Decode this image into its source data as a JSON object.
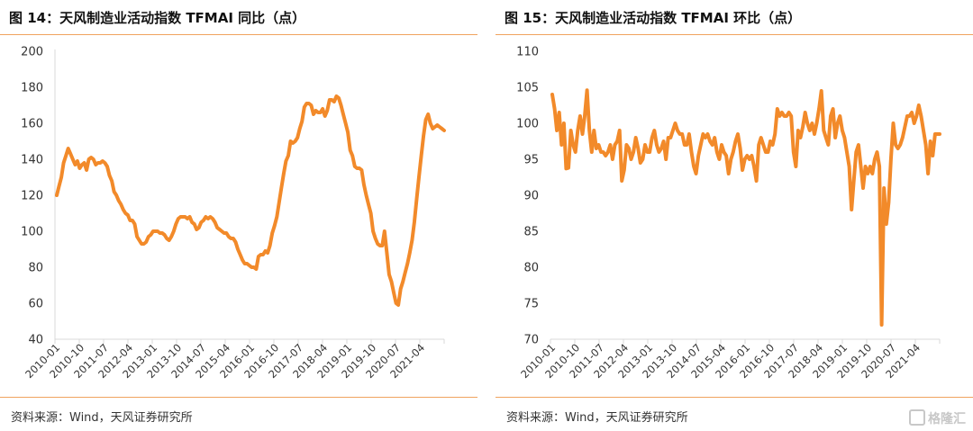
{
  "colors": {
    "series": "#f28a2a",
    "rule": "#f0a35e"
  },
  "watermark": {
    "text": "格隆汇"
  },
  "chart_data": [
    {
      "type": "line",
      "title": "图 14：天风制造业活动指数 TFMAI 同比（点）",
      "source": "资料来源：Wind，天风证券研究所",
      "ylim": [
        40,
        200
      ],
      "yticks": [
        40,
        60,
        80,
        100,
        120,
        140,
        160,
        180,
        200
      ],
      "xticks": [
        "2010-01",
        "2010-10",
        "2011-07",
        "2012-04",
        "2013-01",
        "2013-10",
        "2014-07",
        "2015-04",
        "2016-01",
        "2016-10",
        "2017-07",
        "2018-04",
        "2019-01",
        "2019-10",
        "2020-07",
        "2021-04"
      ],
      "legend": "none",
      "grid": false,
      "series": [
        {
          "values": [
            120,
            125,
            130,
            138,
            142,
            146,
            143,
            140,
            137,
            139,
            135,
            137,
            138,
            134,
            140,
            141,
            140,
            137,
            138,
            138,
            139,
            138,
            136,
            131,
            128,
            122,
            120,
            117,
            115,
            112,
            110,
            109,
            106,
            106,
            104,
            97,
            95,
            93,
            93,
            94,
            97,
            98,
            100,
            100,
            100,
            99,
            99,
            98,
            96,
            95,
            97,
            100,
            104,
            107,
            108,
            108,
            108,
            107,
            108,
            105,
            104,
            101,
            102,
            105,
            106,
            108,
            107,
            108,
            107,
            105,
            102,
            101,
            100,
            99,
            99,
            97,
            96,
            96,
            94,
            90,
            87,
            84,
            82,
            82,
            81,
            80,
            80,
            79,
            86,
            87,
            87,
            89,
            88,
            92,
            99,
            103,
            108,
            116,
            124,
            132,
            139,
            142,
            150,
            149,
            150,
            152,
            157,
            161,
            169,
            171,
            171,
            170,
            165,
            167,
            166,
            166,
            168,
            164,
            167,
            173,
            173,
            172,
            175,
            174,
            170,
            165,
            160,
            155,
            145,
            142,
            136,
            135,
            135,
            134,
            126,
            120,
            115,
            110,
            100,
            96,
            93,
            92,
            92,
            100,
            88,
            76,
            72,
            66,
            60,
            59,
            68,
            72,
            77,
            82,
            88,
            95,
            105,
            118,
            130,
            142,
            153,
            162,
            165,
            160,
            157,
            158,
            159,
            158,
            157,
            156
          ]
        }
      ]
    },
    {
      "type": "line",
      "title": "图 15：天风制造业活动指数 TFMAI 环比（点）",
      "source": "资料来源：Wind，天风证券研究所",
      "ylim": [
        70,
        110
      ],
      "yticks": [
        70,
        75,
        80,
        85,
        90,
        95,
        100,
        105,
        110
      ],
      "xticks": [
        "2010-01",
        "2010-10",
        "2011-07",
        "2012-04",
        "2013-01",
        "2013-10",
        "2014-07",
        "2015-04",
        "2016-01",
        "2016-10",
        "2017-07",
        "2018-04",
        "2019-01",
        "2019-10",
        "2020-07",
        "2021-04"
      ],
      "legend": "none",
      "grid": false,
      "series": [
        {
          "values": [
            104,
            102,
            99,
            101.5,
            97,
            100,
            93.7,
            93.8,
            99,
            97,
            96,
            99,
            101,
            98.5,
            101,
            104.6,
            99,
            96,
            99,
            96.5,
            97,
            96,
            96,
            95.5,
            96,
            97,
            95,
            97,
            97.5,
            99,
            92,
            93.5,
            97,
            96.5,
            95,
            96,
            98,
            96.5,
            94.5,
            95,
            97,
            96,
            96,
            98,
            99,
            97,
            96,
            96.5,
            97.5,
            95,
            98,
            98,
            99,
            100,
            99,
            98.5,
            98.5,
            97,
            97,
            98.5,
            96,
            94,
            93,
            95.5,
            97,
            98.5,
            98,
            98.5,
            97.5,
            97,
            98,
            96,
            95,
            97,
            96,
            95.5,
            93,
            95,
            96,
            97.5,
            98.5,
            96.5,
            93.5,
            95,
            95.5,
            95,
            95.5,
            94,
            92,
            97,
            98,
            97,
            96,
            96,
            97.5,
            97,
            98.5,
            102,
            101,
            101.5,
            101,
            101,
            101.5,
            101,
            96,
            94,
            99,
            98,
            99.5,
            101.5,
            100,
            99,
            100,
            98.5,
            100,
            102,
            104.5,
            99,
            98,
            97,
            101,
            102,
            98,
            100,
            101,
            99,
            98,
            96,
            94,
            88,
            92,
            96,
            97,
            94,
            91,
            94,
            93,
            94,
            93,
            95,
            96,
            94,
            72,
            91,
            86,
            89,
            95,
            100,
            97,
            96.5,
            97,
            98,
            99.5,
            101,
            101,
            101.5,
            100,
            101,
            102.5,
            101,
            99,
            97,
            93,
            97.5,
            95.5,
            98.5,
            98.5,
            98.5
          ]
        }
      ]
    }
  ]
}
